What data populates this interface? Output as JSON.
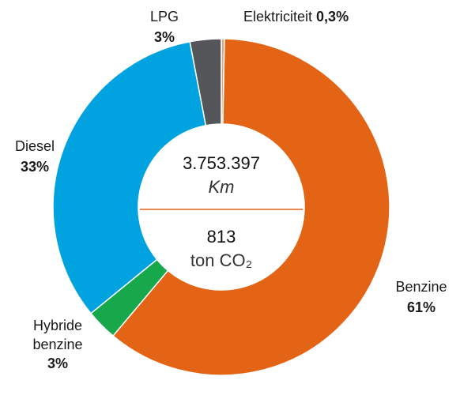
{
  "chart_data": {
    "type": "donut",
    "categories": [
      "Elektriciteit",
      "Benzine",
      "Hybride benzine",
      "Diesel",
      "LPG"
    ],
    "values": [
      0.3,
      61,
      3,
      33,
      3
    ],
    "value_labels": [
      "0,3%",
      "61%",
      "3%",
      "33%",
      "3%"
    ],
    "colors": [
      "#e9a277",
      "#e36414",
      "#17a84b",
      "#00a3e0",
      "#54565a"
    ],
    "annotations": [
      "3.753.397",
      "Km",
      "813",
      "ton CO₂"
    ]
  }
}
